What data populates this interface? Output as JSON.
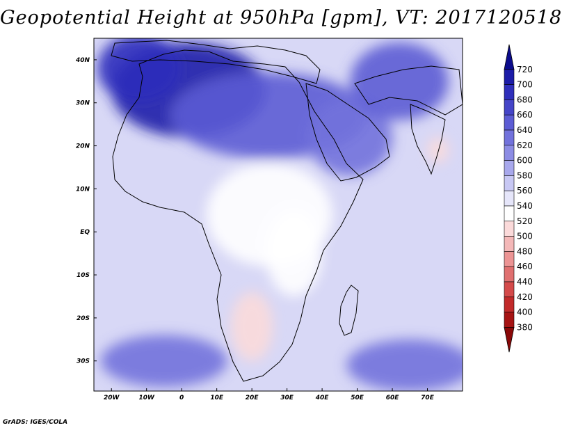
{
  "title": "Geopotential Height at 950hPa [gpm], VT: 2017120518",
  "credit": "GrADS: IGES/COLA",
  "map": {
    "region": "Africa, Arabia and western Indian Ocean",
    "lon_range": [
      -25,
      80
    ],
    "lat_range": [
      -37,
      45
    ],
    "lon_ticks": [
      "20W",
      "10W",
      "0",
      "10E",
      "20E",
      "30E",
      "40E",
      "50E",
      "60E",
      "70E"
    ],
    "lon_tick_values": [
      -20,
      -10,
      0,
      10,
      20,
      30,
      40,
      50,
      60,
      70
    ],
    "lat_ticks": [
      "40N",
      "30N",
      "20N",
      "10N",
      "EQ",
      "10S",
      "20S",
      "30S"
    ],
    "lat_tick_values": [
      40,
      30,
      20,
      10,
      0,
      -10,
      -20,
      -30
    ],
    "features": [
      {
        "name": "high-north-africa",
        "lon": 2,
        "lat": 33,
        "rx": 22,
        "ry": 11,
        "level": 700
      },
      {
        "name": "high-nw-africa",
        "lon": -12,
        "lat": 38,
        "rx": 12,
        "ry": 8,
        "level": 680
      },
      {
        "name": "high-north-atlantic-strip",
        "lon": 25,
        "lat": 27,
        "rx": 28,
        "ry": 10,
        "level": 640
      },
      {
        "name": "arabia-ridge",
        "lon": 48,
        "lat": 22,
        "rx": 12,
        "ry": 9,
        "level": 620
      },
      {
        "name": "iran-ridge",
        "lon": 62,
        "lat": 35,
        "rx": 14,
        "ry": 9,
        "level": 640
      },
      {
        "name": "low-central-africa",
        "lon": 25,
        "lat": 4,
        "rx": 18,
        "ry": 12,
        "level": 520
      },
      {
        "name": "low-east-africa",
        "lon": 32,
        "lat": -5,
        "rx": 8,
        "ry": 10,
        "level": 520
      },
      {
        "name": "low-southern-africa",
        "lon": 20,
        "lat": -22,
        "rx": 6,
        "ry": 8,
        "level": 500
      },
      {
        "name": "low-india",
        "lon": 73,
        "lat": 19,
        "rx": 3,
        "ry": 3,
        "level": 500
      },
      {
        "name": "high-south-atlantic",
        "lon": -5,
        "lat": -30,
        "rx": 18,
        "ry": 6,
        "level": 620
      },
      {
        "name": "high-south-indian",
        "lon": 65,
        "lat": -31,
        "rx": 18,
        "ry": 6,
        "level": 620
      }
    ]
  },
  "colorbar": {
    "levels": [
      "720",
      "700",
      "680",
      "660",
      "640",
      "620",
      "600",
      "580",
      "560",
      "540",
      "520",
      "500",
      "480",
      "460",
      "440",
      "420",
      "400",
      "380"
    ],
    "colors": [
      "#0b0b8c",
      "#1c1ca8",
      "#2f2fbb",
      "#4545c8",
      "#5c5cd4",
      "#7272dc",
      "#8c8ce4",
      "#a8a8ec",
      "#c8c8f4",
      "#e6e6fa",
      "#ffffff",
      "#fbdada",
      "#f4b8b8",
      "#ec9494",
      "#e07070",
      "#d44a4a",
      "#c22a2a",
      "#a61414",
      "#8a0808"
    ]
  }
}
